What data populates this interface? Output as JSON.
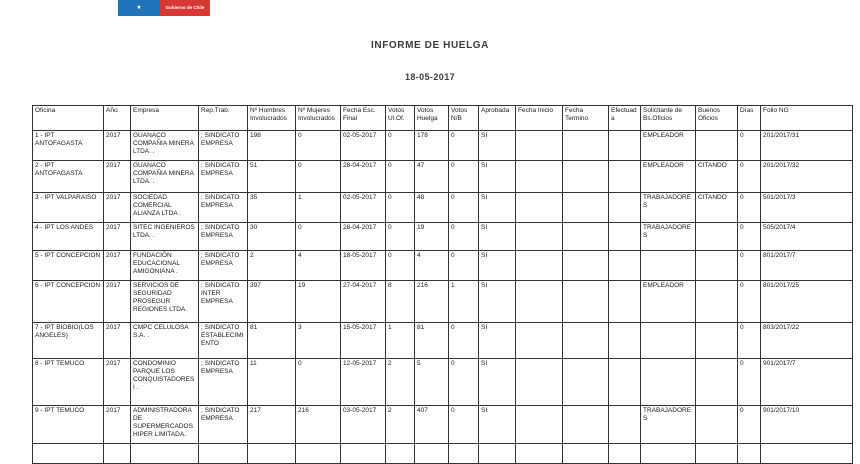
{
  "logo": {
    "text": "Gobierno de Chile",
    "blue": "#2173b9",
    "red": "#d93832"
  },
  "report": {
    "title": "INFORME DE HUELGA",
    "date": "18-05-2017"
  },
  "table": {
    "columns": [
      "Oficina",
      "Año",
      "Empresa",
      "Rep.Trab.",
      "Nº Hombres Involucrados",
      "Nº Mujeres Involucrados",
      "Fecha Esc. Final",
      "Votos Ul.Of.",
      "Votos Huelga",
      "Votos N/B",
      "Aprobada",
      "Fecha Inicio",
      "Fecha Termino",
      "Efectuada",
      "Solicitante de Bs.Oficios",
      "Buenos Oficios",
      "Días",
      "Folio NG"
    ],
    "rows": [
      [
        "1 - IPT ANTOFAGASTA",
        "2017",
        "GUANACO COMPAÑIA MINERA LTDA. .",
        "; SINDICATO EMPRESA",
        "198",
        "0",
        "02-05-2017",
        "0",
        "178",
        "0",
        "SI",
        "",
        "",
        "",
        "EMPLEADOR",
        "",
        "0",
        "201/2017/31"
      ],
      [
        "2 - IPT ANTOFAGASTA",
        "2017",
        "GUANACO COMPAÑIA MINERA LTDA. .",
        "; SINDICATO EMPRESA",
        "51",
        "0",
        "28-04-2017",
        "0",
        "47",
        "0",
        "SI",
        "",
        "",
        "",
        "EMPLEADOR",
        "CITANDO",
        "0",
        "201/2017/32"
      ],
      [
        "3 - IPT VALPARAISO",
        "2017",
        "SOCIEDAD COMERCIAL ALIANZA LTDA .",
        "; SINDICATO EMPRESA",
        "35",
        "1",
        "02-05-2017",
        "0",
        "48",
        "0",
        "SI",
        "",
        "",
        "",
        "TRABAJADORES",
        "CITANDO",
        "0",
        "501/2017/3"
      ],
      [
        "4 - IPT LOS ANDES",
        "2017",
        "SITEC INGENIEROS LTDA. .",
        "; SINDICATO EMPRESA",
        "30",
        "0",
        "28-04-2017",
        "0",
        "19",
        "0",
        "SI",
        "",
        "",
        "",
        "TRABAJADORES",
        "",
        "0",
        "505/2017/4"
      ],
      [
        "5 - IPT CONCEPCION",
        "2017",
        "FUNDACIÓN EDUCACIONAL AMIGONIANA .",
        "; SINDICATO EMPRESA",
        "2",
        "4",
        "18-05-2017",
        "0",
        "4",
        "0",
        "SI",
        "",
        "",
        "",
        "",
        "",
        "0",
        "801/2017/7"
      ],
      [
        "6 - IPT CONCEPCION",
        "2017",
        "SERVICIOS DE SEGURIDAD PROSEGUR REGIONES LTDA.",
        "; SINDICATO INTER EMPRESA",
        "397",
        "19",
        "27-04-2017",
        "8",
        "216",
        "1",
        "SI",
        "",
        "",
        "",
        "EMPLEADOR",
        "",
        "0",
        "801/2017/25"
      ],
      [
        "7 - IPT BIOBIO(LOS ANGELES)",
        "2017",
        "CMPC CELULOSA S.A. .",
        "; SINDICATO ESTABLECIMIENTO",
        "81",
        "3",
        "15-05-2017",
        "1",
        "81",
        "0",
        "SI",
        "",
        "",
        "",
        "",
        "",
        "0",
        "803/2017/22"
      ],
      [
        "8 - IPT TEMUCO",
        "2017",
        "CONDOMINIO PARQUE LOS CONQUISTADORES I .",
        "; SINDICATO EMPRESA",
        "11",
        "0",
        "12-05-2017",
        "2",
        "5",
        "0",
        "SI",
        "",
        "",
        "",
        "",
        "",
        "0",
        "901/2017/7"
      ],
      [
        "9 - IPT TEMUCO",
        "2017",
        "ADMINISTRADORA DE SUPERMERCADOS HIPER LIMITADA.",
        "; SINDICATO EMPRESA",
        "217",
        "216",
        "03-05-2017",
        "2",
        "407",
        "0",
        "SI",
        "",
        "",
        "",
        "TRABAJADORES",
        "",
        "0",
        "901/2017/10"
      ]
    ]
  }
}
